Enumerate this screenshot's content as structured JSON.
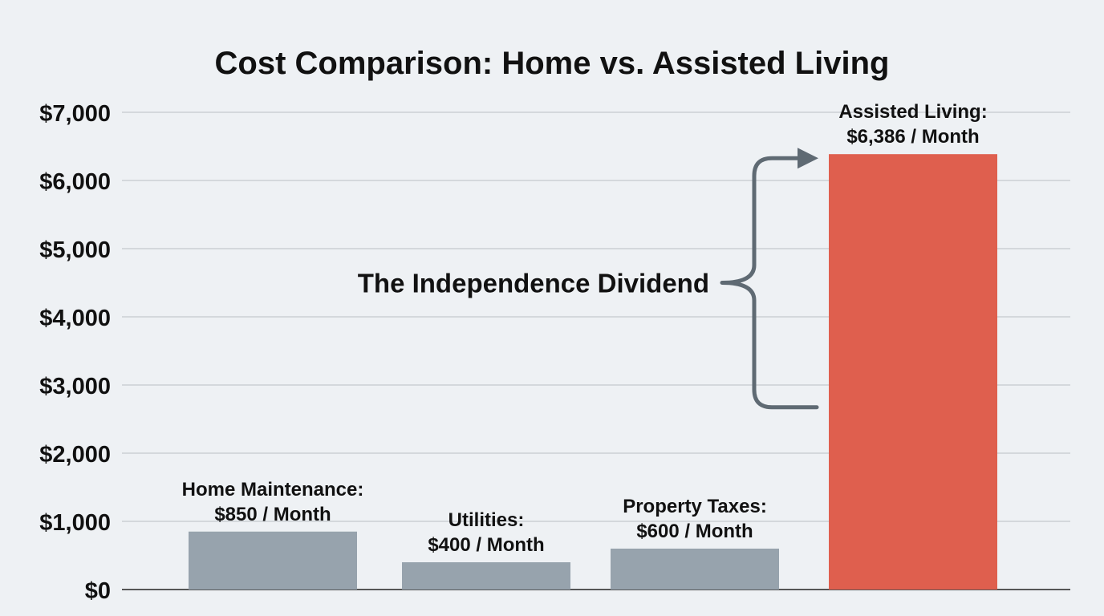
{
  "chart_data": {
    "type": "bar",
    "title": "Cost Comparison: Home vs. Assisted Living",
    "xlabel": "",
    "ylabel": "",
    "ylim": [
      0,
      7000
    ],
    "yticks": [
      0,
      1000,
      2000,
      3000,
      4000,
      5000,
      6000,
      7000
    ],
    "ytick_labels": [
      "$0",
      "$1,000",
      "$2,000",
      "$3,000",
      "$4,000",
      "$5,000",
      "$6,000",
      "$7,000"
    ],
    "grid": true,
    "legend": "none",
    "categories": [
      "Home Maintenance",
      "Utilities",
      "Property Taxes",
      "Assisted Living"
    ],
    "values": [
      850,
      400,
      600,
      6386
    ],
    "bar_colors": [
      "#97a3ad",
      "#97a3ad",
      "#97a3ad",
      "#df5f4e"
    ],
    "data_labels": [
      [
        "Home Maintenance:",
        "$850 / Month"
      ],
      [
        "Utilities:",
        "$400 / Month"
      ],
      [
        "Property Taxes:",
        "$600 / Month"
      ],
      [
        "Assisted Living:",
        "$6,386 / Month"
      ]
    ],
    "annotations": [
      {
        "text": "The Independence Dividend",
        "type": "brace",
        "from_value": 850,
        "to_value": 6386,
        "color": "#5f6a73"
      }
    ]
  }
}
